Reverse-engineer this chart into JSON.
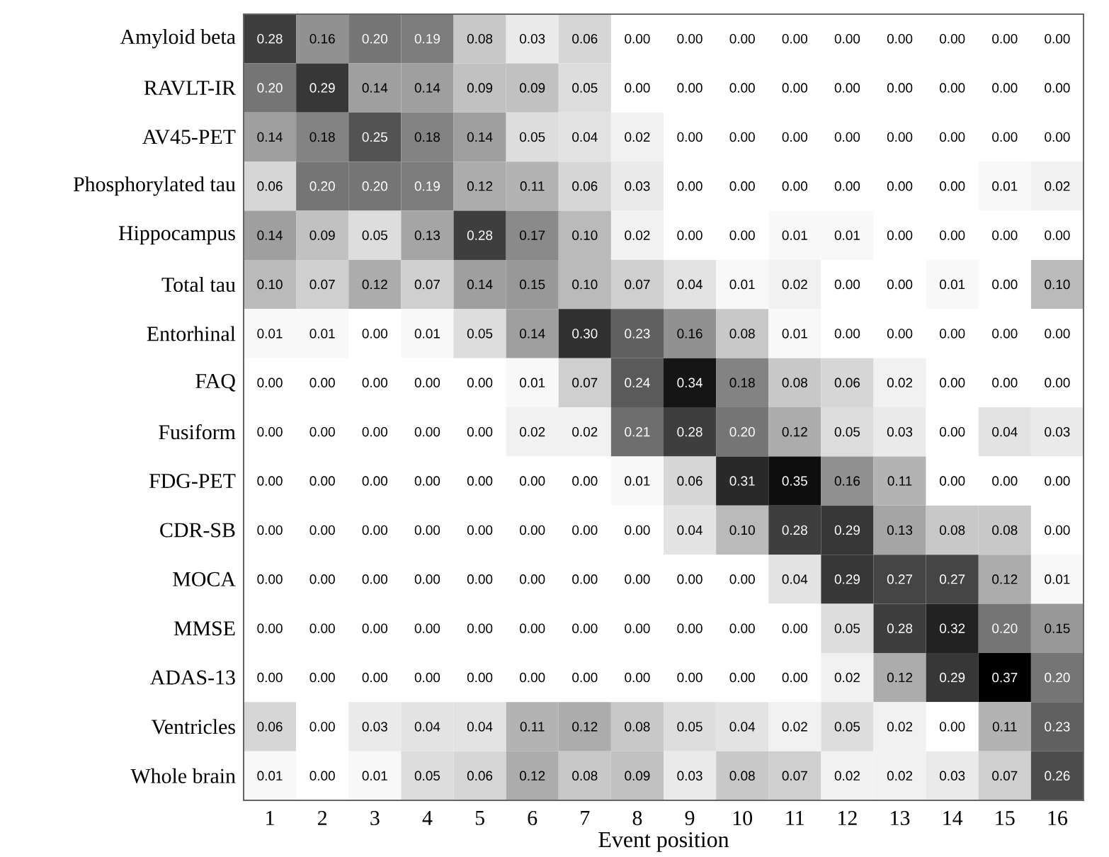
{
  "chart_data": {
    "type": "heatmap",
    "xlabel": "Event position",
    "categories": [
      "1",
      "2",
      "3",
      "4",
      "5",
      "6",
      "7",
      "8",
      "9",
      "10",
      "11",
      "12",
      "13",
      "14",
      "15",
      "16"
    ],
    "y_categories": [
      "Amyloid beta",
      "RAVLT-IR",
      "AV45-PET",
      "Phosphorylated tau",
      "Hippocampus",
      "Total tau",
      "Entorhinal",
      "FAQ",
      "Fusiform",
      "FDG-PET",
      "CDR-SB",
      "MOCA",
      "MMSE",
      "ADAS-13",
      "Ventricles",
      "Whole brain"
    ],
    "cells": [
      [
        0.28,
        0.16,
        0.2,
        0.19,
        0.08,
        0.03,
        0.06,
        0.0,
        0.0,
        0.0,
        0.0,
        0.0,
        0.0,
        0.0,
        0.0,
        0.0
      ],
      [
        0.2,
        0.29,
        0.14,
        0.14,
        0.09,
        0.09,
        0.05,
        0.0,
        0.0,
        0.0,
        0.0,
        0.0,
        0.0,
        0.0,
        0.0,
        0.0
      ],
      [
        0.14,
        0.18,
        0.25,
        0.18,
        0.14,
        0.05,
        0.04,
        0.02,
        0.0,
        0.0,
        0.0,
        0.0,
        0.0,
        0.0,
        0.0,
        0.0
      ],
      [
        0.06,
        0.2,
        0.2,
        0.19,
        0.12,
        0.11,
        0.06,
        0.03,
        0.0,
        0.0,
        0.0,
        0.0,
        0.0,
        0.0,
        0.01,
        0.02
      ],
      [
        0.14,
        0.09,
        0.05,
        0.13,
        0.28,
        0.17,
        0.1,
        0.02,
        0.0,
        0.0,
        0.01,
        0.01,
        0.0,
        0.0,
        0.0,
        0.0
      ],
      [
        0.1,
        0.07,
        0.12,
        0.07,
        0.14,
        0.15,
        0.1,
        0.07,
        0.04,
        0.01,
        0.02,
        0.0,
        0.0,
        0.01,
        0.0,
        0.1
      ],
      [
        0.01,
        0.01,
        0.0,
        0.01,
        0.05,
        0.14,
        0.3,
        0.23,
        0.16,
        0.08,
        0.01,
        0.0,
        0.0,
        0.0,
        0.0,
        0.0
      ],
      [
        0.0,
        0.0,
        0.0,
        0.0,
        0.0,
        0.01,
        0.07,
        0.24,
        0.34,
        0.18,
        0.08,
        0.06,
        0.02,
        0.0,
        0.0,
        0.0
      ],
      [
        0.0,
        0.0,
        0.0,
        0.0,
        0.0,
        0.02,
        0.02,
        0.21,
        0.28,
        0.2,
        0.12,
        0.05,
        0.03,
        0.0,
        0.04,
        0.03
      ],
      [
        0.0,
        0.0,
        0.0,
        0.0,
        0.0,
        0.0,
        0.0,
        0.01,
        0.06,
        0.31,
        0.35,
        0.16,
        0.11,
        0.0,
        0.0,
        0.0
      ],
      [
        0.0,
        0.0,
        0.0,
        0.0,
        0.0,
        0.0,
        0.0,
        0.0,
        0.04,
        0.1,
        0.28,
        0.29,
        0.13,
        0.08,
        0.08,
        0.0
      ],
      [
        0.0,
        0.0,
        0.0,
        0.0,
        0.0,
        0.0,
        0.0,
        0.0,
        0.0,
        0.0,
        0.04,
        0.29,
        0.27,
        0.27,
        0.12,
        0.01
      ],
      [
        0.0,
        0.0,
        0.0,
        0.0,
        0.0,
        0.0,
        0.0,
        0.0,
        0.0,
        0.0,
        0.0,
        0.05,
        0.28,
        0.32,
        0.2,
        0.15
      ],
      [
        0.0,
        0.0,
        0.0,
        0.0,
        0.0,
        0.0,
        0.0,
        0.0,
        0.0,
        0.0,
        0.0,
        0.02,
        0.12,
        0.29,
        0.37,
        0.2
      ],
      [
        0.06,
        0.0,
        0.03,
        0.04,
        0.04,
        0.11,
        0.12,
        0.08,
        0.05,
        0.04,
        0.02,
        0.05,
        0.02,
        0.0,
        0.11,
        0.23
      ],
      [
        0.01,
        0.0,
        0.01,
        0.05,
        0.06,
        0.12,
        0.08,
        0.09,
        0.03,
        0.08,
        0.07,
        0.02,
        0.02,
        0.03,
        0.07,
        0.26
      ]
    ],
    "cell_labels": [
      [
        "0.28",
        "0.16",
        "0.20",
        "0.19",
        "0.08",
        "0.03",
        "0.06",
        "0.00",
        "0.00",
        "0.00",
        "0.00",
        "0.00",
        "0.00",
        "0.00",
        "0.00",
        "0.00"
      ],
      [
        "0.20",
        "0.29",
        "0.14",
        "0.14",
        "0.09",
        "0.09",
        "0.05",
        "0.00",
        "0.00",
        "0.00",
        "0.00",
        "0.00",
        "0.00",
        "0.00",
        "0.00",
        "0.00"
      ],
      [
        "0.14",
        "0.18",
        "0.25",
        "0.18",
        "0.14",
        "0.05",
        "0.04",
        "0.02",
        "0.00",
        "0.00",
        "0.00",
        "0.00",
        "0.00",
        "0.00",
        "0.00",
        "0.00"
      ],
      [
        "0.06",
        "0.20",
        "0.20",
        "0.19",
        "0.12",
        "0.11",
        "0.06",
        "0.03",
        "0.00",
        "0.00",
        "0.00",
        "0.00",
        "0.00",
        "0.00",
        "0.01",
        "0.02"
      ],
      [
        "0.14",
        "0.09",
        "0.05",
        "0.13",
        "0.28",
        "0.17",
        "0.10",
        "0.02",
        "0.00",
        "0.00",
        "0.01",
        "0.01",
        "0.00",
        "0.00",
        "0.00",
        "0.00"
      ],
      [
        "0.10",
        "0.07",
        "0.12",
        "0.07",
        "0.14",
        "0.15",
        "0.10",
        "0.07",
        "0.04",
        "0.01",
        "0.02",
        "0.00",
        "0.00",
        "0.01",
        "0.00",
        "0.10"
      ],
      [
        "0.01",
        "0.01",
        "0.00",
        "0.01",
        "0.05",
        "0.14",
        "0.30",
        "0.23",
        "0.16",
        "0.08",
        "0.01",
        "0.00",
        "0.00",
        "0.00",
        "0.00",
        "0.00"
      ],
      [
        "0.00",
        "0.00",
        "0.00",
        "0.00",
        "0.00",
        "0.01",
        "0.07",
        "0.24",
        "0.34",
        "0.18",
        "0.08",
        "0.06",
        "0.02",
        "0.00",
        "0.00",
        "0.00"
      ],
      [
        "0.00",
        "0.00",
        "0.00",
        "0.00",
        "0.00",
        "0.02",
        "0.02",
        "0.21",
        "0.28",
        "0.20",
        "0.12",
        "0.05",
        "0.03",
        "0.00",
        "0.04",
        "0.03"
      ],
      [
        "0.00",
        "0.00",
        "0.00",
        "0.00",
        "0.00",
        "0.00",
        "0.00",
        "0.01",
        "0.06",
        "0.31",
        "0.35",
        "0.16",
        "0.11",
        "0.00",
        "0.00",
        "0.00"
      ],
      [
        "0.00",
        "0.00",
        "0.00",
        "0.00",
        "0.00",
        "0.00",
        "0.00",
        "0.00",
        "0.04",
        "0.10",
        "0.28",
        "0.29",
        "0.13",
        "0.08",
        "0.08",
        "0.00"
      ],
      [
        "0.00",
        "0.00",
        "0.00",
        "0.00",
        "0.00",
        "0.00",
        "0.00",
        "0.00",
        "0.00",
        "0.00",
        "0.04",
        "0.29",
        "0.27",
        "0.27",
        "0.12",
        "0.01"
      ],
      [
        "0.00",
        "0.00",
        "0.00",
        "0.00",
        "0.00",
        "0.00",
        "0.00",
        "0.00",
        "0.00",
        "0.00",
        "0.00",
        "0.05",
        "0.28",
        "0.32",
        "0.20",
        "0.15"
      ],
      [
        "0.00",
        "0.00",
        "0.00",
        "0.00",
        "0.00",
        "0.00",
        "0.00",
        "0.00",
        "0.00",
        "0.00",
        "0.00",
        "0.02",
        "0.12",
        "0.29",
        "0.37",
        "0.20"
      ],
      [
        "0.06",
        "0.00",
        "0.03",
        "0.04",
        "0.04",
        "0.11",
        "0.12",
        "0.08",
        "0.05",
        "0.04",
        "0.02",
        "0.05",
        "0.02",
        "0.00",
        "0.11",
        "0.23"
      ],
      [
        "0.01",
        "0.00",
        "0.01",
        "0.05",
        "0.06",
        "0.12",
        "0.08",
        "0.09",
        "0.03",
        "0.08",
        "0.07",
        "0.02",
        "0.02",
        "0.03",
        "0.07",
        "0.26"
      ]
    ]
  }
}
